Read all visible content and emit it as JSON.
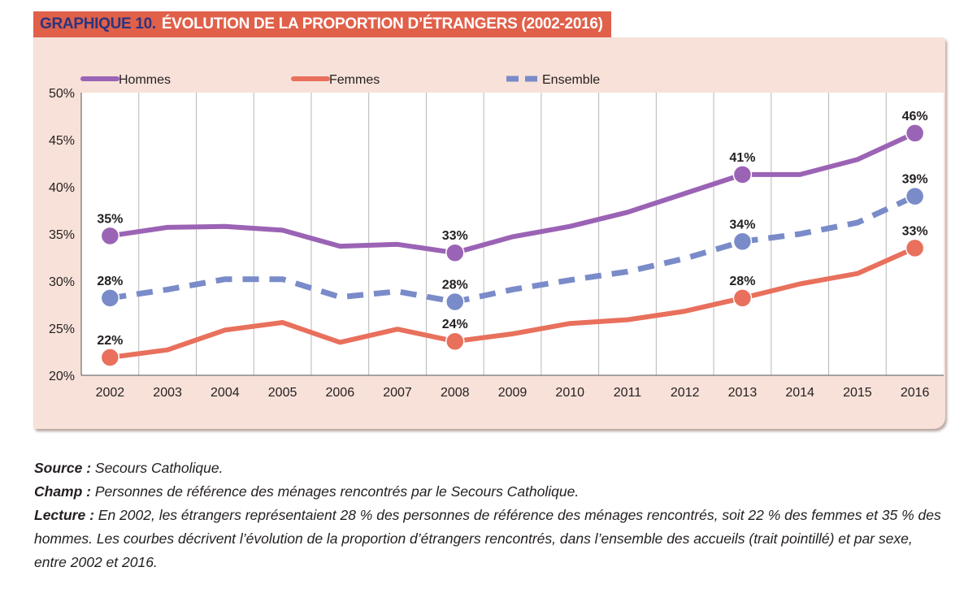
{
  "header": {
    "number": "GRAPHIQUE 10.",
    "title": "ÉVOLUTION DE LA PROPORTION D’ÉTRANGERS (2002-2016)"
  },
  "colors": {
    "hommes": "#9b63b5",
    "femmes": "#e8705c",
    "ensemble": "#7a8bc9",
    "panel": "#f7e1d8",
    "title_band": "#e0604a",
    "title_number": "#2a3580"
  },
  "chart_data": {
    "type": "line",
    "title": "ÉVOLUTION DE LA PROPORTION D’ÉTRANGERS (2002-2016)",
    "xlabel": "",
    "ylabel": "",
    "x": [
      "2002",
      "2003",
      "2004",
      "2005",
      "2006",
      "2007",
      "2008",
      "2009",
      "2010",
      "2011",
      "2012",
      "2013",
      "2014",
      "2015",
      "2016"
    ],
    "ylim": [
      20,
      50
    ],
    "yticks": [
      "20%",
      "25%",
      "30%",
      "35%",
      "40%",
      "45%",
      "50%"
    ],
    "grid": "vertical",
    "legend": "top",
    "series": [
      {
        "name": "Hommes",
        "color": "#9b63b5",
        "style": "solid",
        "values": [
          34.8,
          35.7,
          35.8,
          35.4,
          33.7,
          33.9,
          33.0,
          34.7,
          35.8,
          37.3,
          39.3,
          41.3,
          41.3,
          42.9,
          45.7
        ],
        "labels": [
          {
            "x": "2002",
            "text": "35%"
          },
          {
            "x": "2008",
            "text": "33%"
          },
          {
            "x": "2013",
            "text": "41%"
          },
          {
            "x": "2016",
            "text": "46%"
          }
        ]
      },
      {
        "name": "Femmes",
        "color": "#e8705c",
        "style": "solid",
        "values": [
          21.9,
          22.7,
          24.8,
          25.6,
          23.5,
          24.9,
          23.6,
          24.4,
          25.5,
          25.9,
          26.8,
          28.2,
          29.7,
          30.8,
          33.5
        ],
        "labels": [
          {
            "x": "2002",
            "text": "22%"
          },
          {
            "x": "2008",
            "text": "24%"
          },
          {
            "x": "2013",
            "text": "28%"
          },
          {
            "x": "2016",
            "text": "33%"
          }
        ]
      },
      {
        "name": "Ensemble",
        "color": "#7a8bc9",
        "style": "dashed",
        "values": [
          28.2,
          29.1,
          30.2,
          30.2,
          28.3,
          28.9,
          27.8,
          29.1,
          30.1,
          31.0,
          32.4,
          34.2,
          35.0,
          36.2,
          39.0
        ],
        "labels": [
          {
            "x": "2002",
            "text": "28%"
          },
          {
            "x": "2008",
            "text": "28%"
          },
          {
            "x": "2013",
            "text": "34%"
          },
          {
            "x": "2016",
            "text": "39%"
          }
        ]
      }
    ]
  },
  "notes": {
    "source_label": "Source :",
    "source_text": " Secours Catholique.",
    "champ_label": "Champ :",
    "champ_text": " Personnes de référence des ménages rencontrés par le Secours Catholique.",
    "lecture_label": "Lecture :",
    "lecture_text": " En 2002, les étrangers représentaient 28 % des personnes de référence des ménages rencontrés, soit 22 % des femmes et 35 % des hommes. Les courbes décrivent l’évolution de la proportion d’étrangers rencontrés, dans l’ensemble des accueils (trait pointillé) et par sexe, entre 2002 et 2016."
  }
}
